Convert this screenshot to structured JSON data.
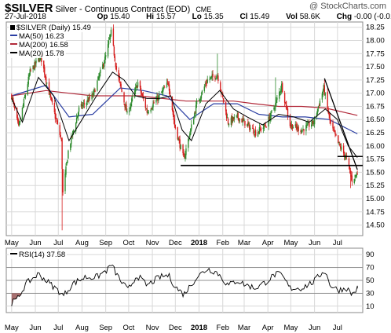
{
  "header": {
    "symbol": "$SILVER",
    "description": "Silver - Continuous Contract (EOD)",
    "exchange": "CME",
    "brand": "@ StockCharts.com",
    "date": "27-Jul-2018",
    "open_label": "Op",
    "open": "15.40",
    "high_label": "Hi",
    "high": "15.57",
    "low_label": "Lo",
    "low": "15.35",
    "close_label": "Cl",
    "close": "15.49",
    "vol_label": "Vol",
    "vol": "58.6K",
    "chg_label": "Chg",
    "chg": "-0.00 (-0.01%)"
  },
  "legend": {
    "main": "$SILVER (Daily) 15.49",
    "ma50": "MA(50) 16.23",
    "ma200": "MA(200) 16.58",
    "ma20": "MA(20) 15.78",
    "rsi": "RSI(14) 37.58"
  },
  "colors": {
    "up": "#2e8b2e",
    "down": "#d62020",
    "ma50": "#2b3fa3",
    "ma200": "#b22a3a",
    "ma20": "#000000",
    "rsi": "#000000",
    "rsi_fill": "#a87070",
    "grid": "#d8d8d8"
  },
  "chart_data": [
    {
      "type": "candlestick",
      "title": "$SILVER (Daily) 15.49",
      "x_axis_labels": [
        "May",
        "Jun",
        "Jul",
        "Aug",
        "Sep",
        "Oct",
        "Nov",
        "Dec",
        "2018",
        "Feb",
        "Mar",
        "Apr",
        "May",
        "Jun",
        "Jul"
      ],
      "y_ticks": [
        "14.50",
        "14.75",
        "15.00",
        "15.25",
        "15.50",
        "15.75",
        "16.00",
        "16.25",
        "16.50",
        "16.75",
        "17.00",
        "17.25",
        "17.50",
        "17.75",
        "18.00",
        "18.25"
      ],
      "ylim": [
        14.3,
        18.35
      ],
      "grid": true,
      "legend_position": "top-left",
      "key_levels": [
        {
          "name": "Resistance",
          "points": [
            [
              "Jun 2018",
              17.28
            ],
            [
              "Jul 2018",
              15.55
            ]
          ]
        },
        {
          "name": "Support",
          "value": 15.63
        },
        {
          "name": "Support",
          "value": 15.8
        }
      ],
      "anchors": [
        [
          "2017-05-01",
          16.95
        ],
        [
          "2017-05-10",
          16.35
        ],
        [
          "2017-05-25",
          17.4
        ],
        [
          "2017-06-08",
          17.7
        ],
        [
          "2017-06-20",
          16.95
        ],
        [
          "2017-07-05",
          16.1
        ],
        [
          "2017-07-07",
          15.1
        ],
        [
          "2017-07-14",
          15.9
        ],
        [
          "2017-07-28",
          16.7
        ],
        [
          "2017-08-15",
          16.95
        ],
        [
          "2017-09-01",
          17.7
        ],
        [
          "2017-09-08",
          18.15
        ],
        [
          "2017-09-15",
          17.45
        ],
        [
          "2017-09-29",
          16.6
        ],
        [
          "2017-10-13",
          17.2
        ],
        [
          "2017-10-25",
          16.65
        ],
        [
          "2017-11-08",
          16.9
        ],
        [
          "2017-11-22",
          17.2
        ],
        [
          "2017-11-30",
          16.4
        ],
        [
          "2017-12-12",
          15.75
        ],
        [
          "2017-12-29",
          16.8
        ],
        [
          "2018-01-12",
          17.25
        ],
        [
          "2018-01-25",
          17.35
        ],
        [
          "2018-02-08",
          16.45
        ],
        [
          "2018-02-20",
          16.55
        ],
        [
          "2018-03-01",
          16.45
        ],
        [
          "2018-03-16",
          16.25
        ],
        [
          "2018-03-30",
          16.4
        ],
        [
          "2018-04-11",
          16.8
        ],
        [
          "2018-04-19",
          17.15
        ],
        [
          "2018-04-30",
          16.4
        ],
        [
          "2018-05-15",
          16.3
        ],
        [
          "2018-05-31",
          16.45
        ],
        [
          "2018-06-13",
          17.1
        ],
        [
          "2018-06-22",
          16.4
        ],
        [
          "2018-07-02",
          16.05
        ],
        [
          "2018-07-13",
          15.75
        ],
        [
          "2018-07-20",
          15.35
        ],
        [
          "2018-07-27",
          15.49
        ]
      ],
      "spikes": [
        [
          "2017-07-06",
          14.4
        ],
        [
          "2017-09-08",
          18.25
        ],
        [
          "2018-01-25",
          17.75
        ],
        [
          "2018-04-11",
          17.3
        ],
        [
          "2018-06-14",
          17.25
        ],
        [
          "2018-07-18",
          15.2
        ]
      ],
      "ma50": [
        [
          "2017-05-01",
          16.95
        ],
        [
          "2017-06-15",
          17.15
        ],
        [
          "2017-07-15",
          16.55
        ],
        [
          "2017-08-15",
          16.6
        ],
        [
          "2017-09-20",
          17.1
        ],
        [
          "2017-10-20",
          17.05
        ],
        [
          "2017-11-20",
          16.95
        ],
        [
          "2017-12-20",
          16.5
        ],
        [
          "2018-01-20",
          16.8
        ],
        [
          "2018-02-20",
          16.8
        ],
        [
          "2018-03-20",
          16.6
        ],
        [
          "2018-04-20",
          16.55
        ],
        [
          "2018-05-20",
          16.55
        ],
        [
          "2018-06-20",
          16.5
        ],
        [
          "2018-07-27",
          16.23
        ]
      ],
      "ma200": [
        [
          "2017-05-01",
          16.95
        ],
        [
          "2017-06-15",
          17.05
        ],
        [
          "2017-07-15",
          17.0
        ],
        [
          "2017-08-15",
          16.95
        ],
        [
          "2017-09-15",
          16.95
        ],
        [
          "2017-10-15",
          16.95
        ],
        [
          "2017-11-15",
          16.9
        ],
        [
          "2017-12-15",
          16.85
        ],
        [
          "2018-01-15",
          16.85
        ],
        [
          "2018-02-15",
          16.85
        ],
        [
          "2018-03-15",
          16.8
        ],
        [
          "2018-04-15",
          16.75
        ],
        [
          "2018-05-15",
          16.75
        ],
        [
          "2018-06-15",
          16.72
        ],
        [
          "2018-07-27",
          16.58
        ]
      ],
      "ma20": [
        [
          "2017-05-01",
          16.9
        ],
        [
          "2017-05-15",
          16.45
        ],
        [
          "2017-06-05",
          17.3
        ],
        [
          "2017-06-25",
          16.95
        ],
        [
          "2017-07-15",
          16.1
        ],
        [
          "2017-08-01",
          16.5
        ],
        [
          "2017-08-20",
          16.95
        ],
        [
          "2017-09-10",
          17.4
        ],
        [
          "2017-09-25",
          17.25
        ],
        [
          "2017-10-10",
          16.95
        ],
        [
          "2017-10-25",
          16.9
        ],
        [
          "2017-11-10",
          16.9
        ],
        [
          "2017-11-25",
          16.95
        ],
        [
          "2017-12-10",
          16.3
        ],
        [
          "2017-12-22",
          16.1
        ],
        [
          "2018-01-10",
          16.8
        ],
        [
          "2018-01-28",
          17.05
        ],
        [
          "2018-02-15",
          16.7
        ],
        [
          "2018-03-05",
          16.55
        ],
        [
          "2018-03-25",
          16.4
        ],
        [
          "2018-04-15",
          16.6
        ],
        [
          "2018-05-05",
          16.55
        ],
        [
          "2018-05-25",
          16.45
        ],
        [
          "2018-06-15",
          16.7
        ],
        [
          "2018-07-01",
          16.5
        ],
        [
          "2018-07-15",
          16.0
        ],
        [
          "2018-07-27",
          15.78
        ]
      ]
    },
    {
      "type": "line",
      "title": "RSI(14) 37.58",
      "x_axis_labels": [
        "May",
        "Jun",
        "Jul",
        "Aug",
        "Sep",
        "Oct",
        "Nov",
        "Dec",
        "2018",
        "Feb",
        "Mar",
        "Apr",
        "May",
        "Jun",
        "Jul"
      ],
      "y_ticks": [
        "10",
        "30",
        "50",
        "70",
        "90"
      ],
      "ylim": [
        0,
        100
      ],
      "reference_lines": [
        30,
        50,
        70
      ],
      "grid": true,
      "legend_position": "top-left",
      "rsi": [
        [
          "2017-05-01",
          15
        ],
        [
          "2017-05-08",
          20
        ],
        [
          "2017-05-20",
          45
        ],
        [
          "2017-06-05",
          60
        ],
        [
          "2017-06-20",
          45
        ],
        [
          "2017-07-05",
          30
        ],
        [
          "2017-07-07",
          25
        ],
        [
          "2017-07-20",
          45
        ],
        [
          "2017-08-05",
          55
        ],
        [
          "2017-08-20",
          55
        ],
        [
          "2017-09-05",
          68
        ],
        [
          "2017-09-08",
          75
        ],
        [
          "2017-09-20",
          50
        ],
        [
          "2017-09-30",
          35
        ],
        [
          "2017-10-12",
          58
        ],
        [
          "2017-10-25",
          42
        ],
        [
          "2017-11-10",
          55
        ],
        [
          "2017-11-22",
          58
        ],
        [
          "2017-12-01",
          40
        ],
        [
          "2017-12-12",
          28
        ],
        [
          "2017-12-29",
          55
        ],
        [
          "2018-01-12",
          68
        ],
        [
          "2018-01-25",
          62
        ],
        [
          "2018-02-08",
          42
        ],
        [
          "2018-02-20",
          50
        ],
        [
          "2018-03-01",
          44
        ],
        [
          "2018-03-16",
          38
        ],
        [
          "2018-03-30",
          48
        ],
        [
          "2018-04-11",
          60
        ],
        [
          "2018-04-19",
          58
        ],
        [
          "2018-04-30",
          38
        ],
        [
          "2018-05-15",
          38
        ],
        [
          "2018-05-31",
          48
        ],
        [
          "2018-06-14",
          66
        ],
        [
          "2018-06-22",
          42
        ],
        [
          "2018-07-02",
          35
        ],
        [
          "2018-07-13",
          38
        ],
        [
          "2018-07-20",
          28
        ],
        [
          "2018-07-27",
          37.58
        ]
      ]
    }
  ]
}
